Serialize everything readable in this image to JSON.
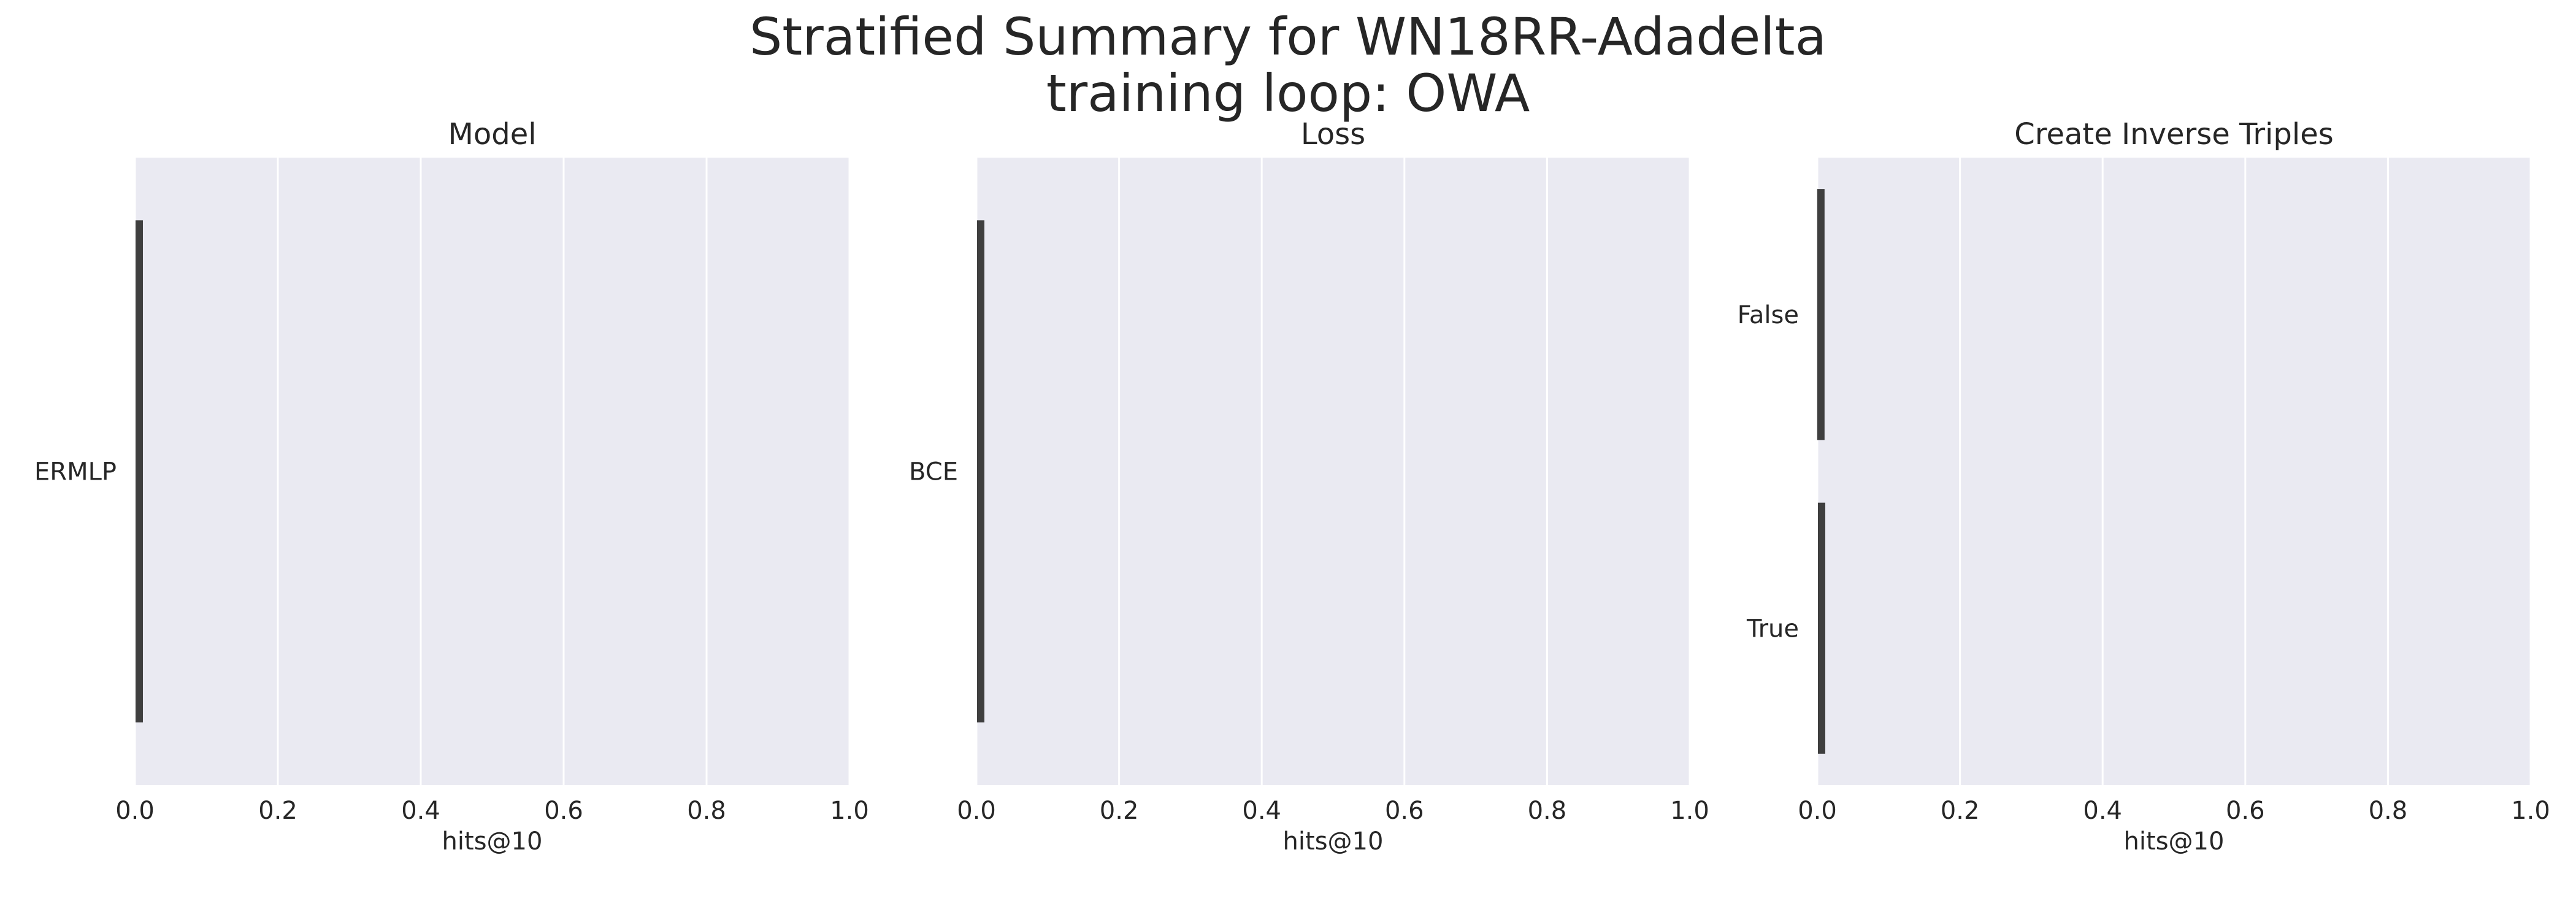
{
  "figure": {
    "title_line1": "Stratified Summary for WN18RR-Adadelta",
    "title_line2": "training loop: OWA"
  },
  "colors": {
    "plot_background": "#eaeaf2",
    "grid": "#ffffff",
    "mark": "#3f3f3f",
    "text": "#262626"
  },
  "chart_data": [
    {
      "type": "box",
      "title": "Model",
      "xlabel": "hits@10",
      "ylabel": "",
      "orientation": "horizontal",
      "xlim": [
        0.0,
        1.0
      ],
      "xticks": [
        "0.0",
        "0.2",
        "0.4",
        "0.6",
        "0.8",
        "1.0"
      ],
      "grid": true,
      "categories": [
        "ERMLP"
      ],
      "boxes": [
        {
          "category": "ERMLP",
          "min": 0.005,
          "q1": 0.005,
          "median": 0.005,
          "q3": 0.006,
          "max": 0.007
        }
      ]
    },
    {
      "type": "box",
      "title": "Loss",
      "xlabel": "hits@10",
      "ylabel": "",
      "orientation": "horizontal",
      "xlim": [
        0.0,
        1.0
      ],
      "xticks": [
        "0.0",
        "0.2",
        "0.4",
        "0.6",
        "0.8",
        "1.0"
      ],
      "grid": true,
      "categories": [
        "BCE"
      ],
      "boxes": [
        {
          "category": "BCE",
          "min": 0.005,
          "q1": 0.005,
          "median": 0.005,
          "q3": 0.006,
          "max": 0.007
        }
      ]
    },
    {
      "type": "box",
      "title": "Create Inverse Triples",
      "xlabel": "hits@10",
      "ylabel": "",
      "orientation": "horizontal",
      "xlim": [
        0.0,
        1.0
      ],
      "xticks": [
        "0.0",
        "0.2",
        "0.4",
        "0.6",
        "0.8",
        "1.0"
      ],
      "grid": true,
      "categories": [
        "False",
        "True"
      ],
      "boxes": [
        {
          "category": "False",
          "min": 0.005,
          "q1": 0.005,
          "median": 0.005,
          "q3": 0.005,
          "max": 0.005
        },
        {
          "category": "True",
          "min": 0.006,
          "q1": 0.006,
          "median": 0.006,
          "q3": 0.006,
          "max": 0.006
        }
      ]
    }
  ]
}
